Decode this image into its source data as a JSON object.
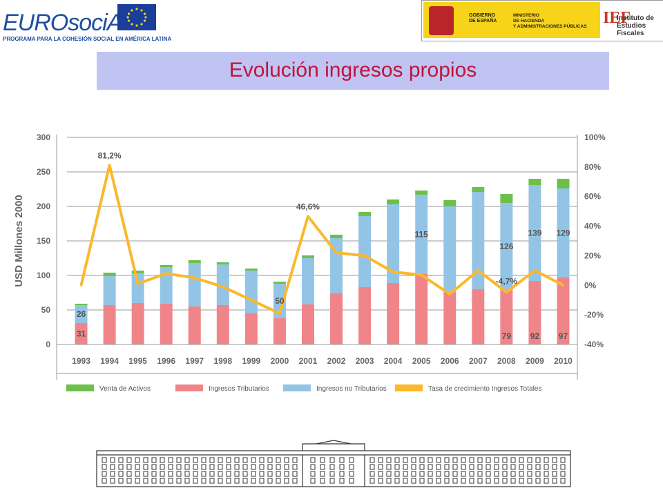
{
  "header": {
    "left_logo": {
      "wordmark": "EUROsociAL",
      "subtitle": "PROGRAMA PARA LA COHESIÓN SOCIAL EN AMÉRICA LATINA"
    },
    "right_logo": {
      "gov_line1": "GOBIERNO",
      "gov_line2": "DE ESPAÑA",
      "ministry_line1": "MINISTERIO",
      "ministry_line2": "DE HACIENDA",
      "ministry_line3": "Y ADMINISTRACIONES PÚBLICAS",
      "ief_mark": "IEF",
      "ief_line1": "Instituto de",
      "ief_line2": "Estudios Fiscales"
    }
  },
  "page_title": "Evolución ingresos propios",
  "colors": {
    "title": "#c0143c",
    "title_band": "#bfc4f2",
    "venta_activos": "#6cc04a",
    "tributarios": "#f08589",
    "no_tributarios": "#93c4e6",
    "tasa": "#fbb82b",
    "axis_text": "#666666",
    "grid": "#9a9a9a"
  },
  "chart_data": {
    "type": "bar",
    "stacked": true,
    "categories": [
      "1993",
      "1994",
      "1995",
      "1996",
      "1997",
      "1998",
      "1999",
      "2000",
      "2001",
      "2002",
      "2003",
      "2004",
      "2005",
      "2006",
      "2007",
      "2008",
      "2009",
      "2010"
    ],
    "ylabel": "USD Millones  2000",
    "ylim": [
      0,
      300
    ],
    "yticks": [
      "0",
      "50",
      "100",
      "150",
      "200",
      "250",
      "300"
    ],
    "y2lim": [
      -40,
      100
    ],
    "y2ticks": [
      "-40%",
      "-20%",
      "0%",
      "20%",
      "40%",
      "60%",
      "80%",
      "100%"
    ],
    "grid": true,
    "legend_position": "bottom",
    "series": [
      {
        "name": "Venta de Activos",
        "values": [
          2,
          5,
          4,
          3,
          4,
          3,
          3,
          3,
          4,
          5,
          6,
          7,
          6,
          9,
          7,
          13,
          9,
          14
        ]
      },
      {
        "name": "Ingresos Tributarios",
        "values": [
          31,
          57,
          60,
          59,
          55,
          57,
          45,
          38,
          58,
          74,
          83,
          89,
          102,
          76,
          80,
          79,
          92,
          97
        ]
      },
      {
        "name": "Ingresos no Tributarios",
        "values": [
          26,
          42,
          43,
          53,
          63,
          59,
          62,
          50,
          67,
          80,
          103,
          114,
          115,
          124,
          141,
          126,
          139,
          129
        ]
      }
    ],
    "line_series": {
      "name": "Tasa de crecimiento Ingresos Totales",
      "axis": "right",
      "values": [
        0,
        81.2,
        1,
        8,
        5,
        -1,
        -10,
        -19,
        46.6,
        22,
        20,
        9,
        7,
        -6,
        10,
        -4.7,
        10,
        0
      ]
    },
    "data_labels": [
      {
        "category": "1993",
        "series": "Ingresos Tributarios",
        "text": "31"
      },
      {
        "category": "1993",
        "series": "Ingresos no Tributarios",
        "text": "26"
      },
      {
        "category": "2000",
        "series": "Ingresos no Tributarios",
        "text": "50"
      },
      {
        "category": "2005",
        "series": "Ingresos no Tributarios",
        "text": "115"
      },
      {
        "category": "2008",
        "series": "Ingresos no Tributarios",
        "text": "126"
      },
      {
        "category": "2008",
        "series": "Ingresos Tributarios",
        "text": "79"
      },
      {
        "category": "2009",
        "series": "Ingresos no Tributarios",
        "text": "139"
      },
      {
        "category": "2009",
        "series": "Ingresos Tributarios",
        "text": "92"
      },
      {
        "category": "2010",
        "series": "Ingresos no Tributarios",
        "text": "129"
      },
      {
        "category": "2010",
        "series": "Ingresos Tributarios",
        "text": "97"
      },
      {
        "category": "1994",
        "series": "Tasa de crecimiento Ingresos Totales",
        "text": "81,2%"
      },
      {
        "category": "2001",
        "series": "Tasa de crecimiento Ingresos Totales",
        "text": "46,6%"
      },
      {
        "category": "2008",
        "series": "Tasa de crecimiento Ingresos Totales",
        "text": "-4,7%"
      }
    ]
  }
}
